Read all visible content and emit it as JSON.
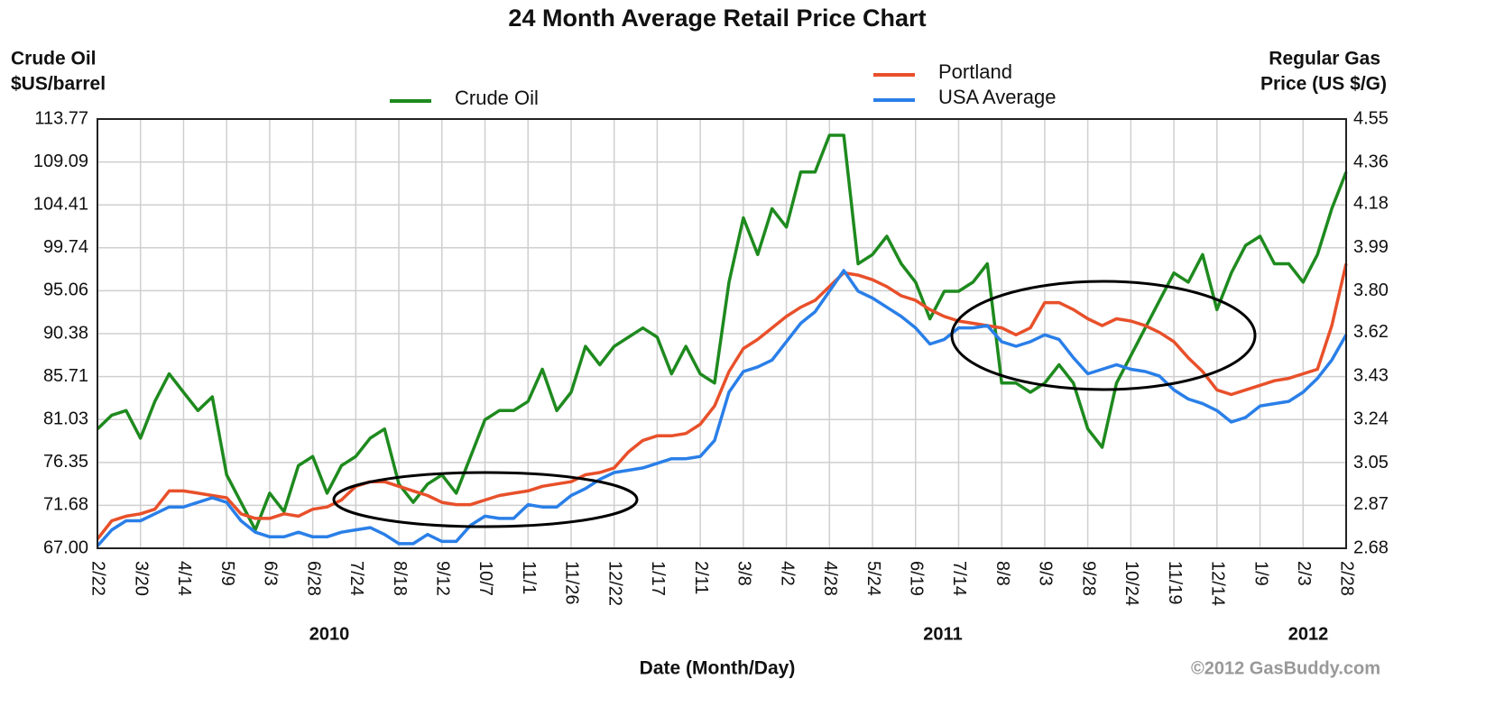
{
  "chart_data": {
    "type": "line",
    "title": "24 Month Average Retail Price Chart",
    "y_label": [
      "Crude Oil",
      "$US/barrel"
    ],
    "y2_label": [
      "Regular Gas",
      "Price (US $/G)"
    ],
    "x_label": "Date (Month/Day)",
    "year_labels": [
      "2010",
      "2011",
      "2012"
    ],
    "copyright": "©2012 GasBuddy.com",
    "grid": true,
    "ylim": [
      67,
      113.77
    ],
    "yticks": [
      {
        "value": 67,
        "label": "67.00"
      },
      71.68,
      76.35,
      81.03,
      85.71,
      90.38,
      95.06,
      99.74,
      104.41,
      109.09,
      113.77
    ],
    "y2lim": [
      2.68,
      4.55
    ],
    "y2ticks": [
      2.68,
      2.87,
      3.05,
      3.24,
      3.43,
      3.62,
      {
        "value": 3.8,
        "label": "3.80"
      },
      3.99,
      4.18,
      4.36,
      4.55
    ],
    "categories": [
      "2/22",
      null,
      null,
      "3/20",
      null,
      null,
      "4/14",
      null,
      null,
      "5/9",
      null,
      null,
      "6/3",
      null,
      null,
      "6/28",
      null,
      null,
      "7/24",
      null,
      null,
      "8/18",
      null,
      null,
      "9/12",
      null,
      null,
      "10/7",
      null,
      null,
      "11/1",
      null,
      null,
      "11/26",
      null,
      null,
      "12/22",
      null,
      null,
      "1/17",
      null,
      null,
      "2/11",
      null,
      null,
      "3/8",
      null,
      null,
      "4/2",
      null,
      null,
      "4/28",
      null,
      null,
      "5/24",
      null,
      null,
      "6/19",
      null,
      null,
      "7/14",
      null,
      null,
      "8/8",
      null,
      null,
      "9/3",
      null,
      null,
      "9/28",
      null,
      null,
      "10/24",
      null,
      null,
      "11/19",
      null,
      null,
      "12/14",
      null,
      null,
      "1/9",
      null,
      null,
      "2/3",
      null,
      null,
      "2/28"
    ],
    "series": [
      {
        "name": "Crude Oil",
        "color": "#1e8a1e",
        "values": [
          80,
          81.5,
          82,
          79,
          83,
          86,
          84,
          82,
          83.5,
          75,
          72,
          69,
          73,
          71,
          76,
          77,
          73,
          76,
          77,
          79,
          80,
          74,
          72,
          74,
          75,
          73,
          77,
          81,
          82,
          82,
          83,
          86.5,
          82,
          84,
          89,
          87,
          89,
          90,
          91,
          90,
          86,
          89,
          86,
          85,
          96,
          103,
          99,
          104,
          102,
          108,
          108,
          112,
          112,
          98,
          99,
          101,
          98,
          96,
          92,
          95,
          95,
          96,
          98,
          85,
          85,
          84,
          85,
          87,
          85,
          80,
          78,
          85,
          88,
          91,
          94,
          97,
          96,
          99,
          93,
          97,
          100,
          101,
          98,
          98,
          96,
          99,
          104,
          108
        ]
      },
      {
        "name": "Portland",
        "color": "#e8502a",
        "axis": "y2",
        "values": [
          2.72,
          2.8,
          2.82,
          2.83,
          2.85,
          2.93,
          2.93,
          2.92,
          2.91,
          2.9,
          2.83,
          2.81,
          2.81,
          2.83,
          2.82,
          2.85,
          2.86,
          2.89,
          2.95,
          2.97,
          2.97,
          2.95,
          2.93,
          2.91,
          2.88,
          2.87,
          2.87,
          2.89,
          2.91,
          2.92,
          2.93,
          2.95,
          2.96,
          2.97,
          3,
          3.01,
          3.03,
          3.1,
          3.15,
          3.17,
          3.17,
          3.18,
          3.22,
          3.3,
          3.45,
          3.55,
          3.59,
          3.64,
          3.69,
          3.73,
          3.76,
          3.82,
          3.88,
          3.87,
          3.85,
          3.82,
          3.78,
          3.76,
          3.72,
          3.69,
          3.67,
          3.66,
          3.65,
          3.64,
          3.61,
          3.64,
          3.75,
          3.75,
          3.72,
          3.68,
          3.65,
          3.68,
          3.67,
          3.65,
          3.62,
          3.58,
          3.51,
          3.45,
          3.37,
          3.35,
          3.37,
          3.39,
          3.41,
          3.42,
          3.44,
          3.46,
          3.65,
          3.92
        ]
      },
      {
        "name": "USA Average",
        "color": "#2a7fe8",
        "axis": "y2",
        "values": [
          2.69,
          2.76,
          2.8,
          2.8,
          2.83,
          2.86,
          2.86,
          2.88,
          2.9,
          2.88,
          2.8,
          2.75,
          2.73,
          2.73,
          2.75,
          2.73,
          2.73,
          2.75,
          2.76,
          2.77,
          2.74,
          2.7,
          2.7,
          2.74,
          2.71,
          2.71,
          2.78,
          2.82,
          2.81,
          2.81,
          2.87,
          2.86,
          2.86,
          2.91,
          2.94,
          2.98,
          3.01,
          3.02,
          3.03,
          3.05,
          3.07,
          3.07,
          3.08,
          3.15,
          3.36,
          3.45,
          3.47,
          3.5,
          3.58,
          3.66,
          3.71,
          3.8,
          3.89,
          3.8,
          3.77,
          3.73,
          3.69,
          3.64,
          3.57,
          3.59,
          3.64,
          3.64,
          3.65,
          3.58,
          3.56,
          3.58,
          3.61,
          3.59,
          3.51,
          3.44,
          3.46,
          3.48,
          3.46,
          3.45,
          3.43,
          3.37,
          3.33,
          3.31,
          3.28,
          3.23,
          3.25,
          3.3,
          3.31,
          3.32,
          3.36,
          3.42,
          3.5,
          3.61
        ]
      }
    ]
  }
}
